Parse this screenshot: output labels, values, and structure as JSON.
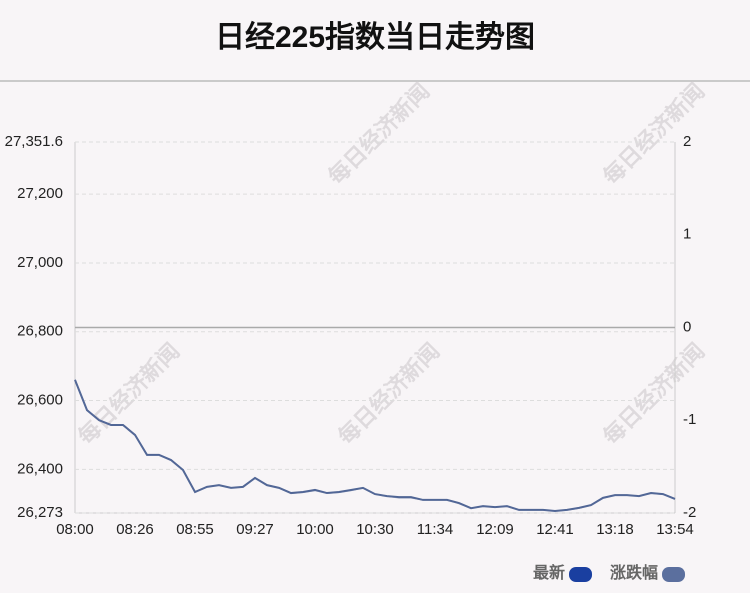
{
  "chart_data": {
    "type": "line",
    "title": "日经225指数当日走势图",
    "watermark": "每日经济新闻",
    "categories": [
      "08:00",
      null,
      null,
      null,
      null,
      "08:26",
      null,
      null,
      null,
      null,
      "08:55",
      null,
      null,
      null,
      null,
      "09:27",
      null,
      null,
      null,
      null,
      "10:00",
      null,
      null,
      null,
      null,
      "10:30",
      null,
      null,
      null,
      null,
      "11:34",
      null,
      null,
      null,
      null,
      "12:09",
      null,
      null,
      null,
      null,
      "12:41",
      null,
      null,
      null,
      null,
      "13:18",
      null,
      null,
      null,
      null,
      "13:54"
    ],
    "series": [
      {
        "name": "最新",
        "color": "#1a3fa0",
        "line_color": "#4f6494",
        "values": [
          26660,
          26572,
          26543,
          26529,
          26529,
          26500,
          26442,
          26442,
          26427,
          26398,
          26334,
          26349,
          26354,
          26346,
          26349,
          26375,
          26354,
          26346,
          26331,
          26334,
          26340,
          26331,
          26334,
          26340,
          26346,
          26328,
          26322,
          26319,
          26319,
          26311,
          26311,
          26311,
          26302,
          26287,
          26293,
          26290,
          26293,
          26282,
          26282,
          26282,
          26279,
          26282,
          26288,
          26296,
          26317,
          26325,
          26325,
          26322,
          26331,
          26328,
          26314
        ]
      },
      {
        "name": "涨跌幅",
        "color": "#5b6f9e",
        "axis": "y2",
        "values": [
          -0.56,
          -0.89,
          -1.0,
          -1.05,
          -1.05,
          -1.16,
          -1.38,
          -1.38,
          -1.43,
          -1.54,
          -1.78,
          -1.72,
          -1.7,
          -1.73,
          -1.72,
          -1.63,
          -1.7,
          -1.73,
          -1.79,
          -1.78,
          -1.76,
          -1.79,
          -1.78,
          -1.76,
          -1.73,
          -1.8,
          -1.82,
          -1.84,
          -1.84,
          -1.86,
          -1.86,
          -1.86,
          -1.9,
          -1.95,
          -1.93,
          -1.94,
          -1.93,
          -1.97,
          -1.97,
          -1.97,
          -1.98,
          -1.97,
          -1.95,
          -1.92,
          -1.84,
          -1.81,
          -1.81,
          -1.82,
          -1.79,
          -1.8,
          -1.85
        ]
      }
    ],
    "ylim": [
      26273,
      27351.6
    ],
    "yticks": [
      {
        "value": 26273,
        "label": "26,273"
      },
      {
        "value": 26400,
        "label": "26,400"
      },
      {
        "value": 26600,
        "label": "26,600"
      },
      {
        "value": 26800,
        "label": "26,800"
      },
      {
        "value": 27000,
        "label": "27,000"
      },
      {
        "value": 27200,
        "label": "27,200"
      },
      {
        "value": 27351.6,
        "label": "27,351.6"
      }
    ],
    "y2lim": [
      -2,
      2
    ],
    "y2ticks": [
      -2,
      -1,
      0,
      1,
      2
    ],
    "grid": true
  }
}
